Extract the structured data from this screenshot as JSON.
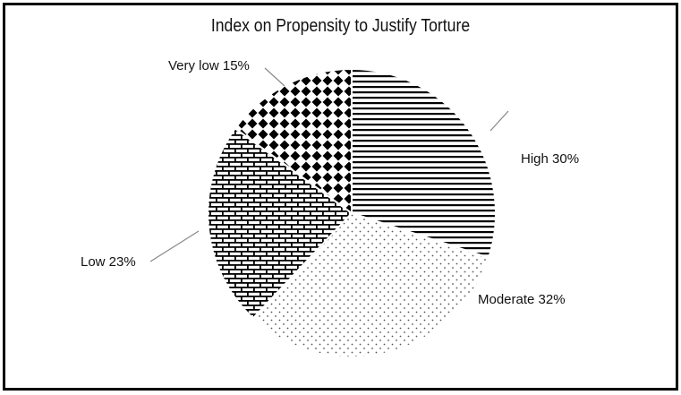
{
  "chart_data": {
    "type": "pie",
    "title": "Index on Propensity to Justify Torture",
    "slices": [
      {
        "label": "High",
        "value": 30,
        "pattern": "horizontal-lines",
        "display": "High 30%"
      },
      {
        "label": "Moderate",
        "value": 32,
        "pattern": "dots",
        "display": "Moderate 32%"
      },
      {
        "label": "Low",
        "value": 23,
        "pattern": "brick",
        "display": "Low 23%"
      },
      {
        "label": "Very low",
        "value": 15,
        "pattern": "diamonds",
        "display": "Very low 15%"
      }
    ],
    "start_angle": "12 o'clock",
    "direction": "clockwise",
    "legend": "none (direct labels with leader lines)"
  },
  "colors": {
    "ink": "#000000",
    "background": "#ffffff",
    "leader": "#888888"
  }
}
